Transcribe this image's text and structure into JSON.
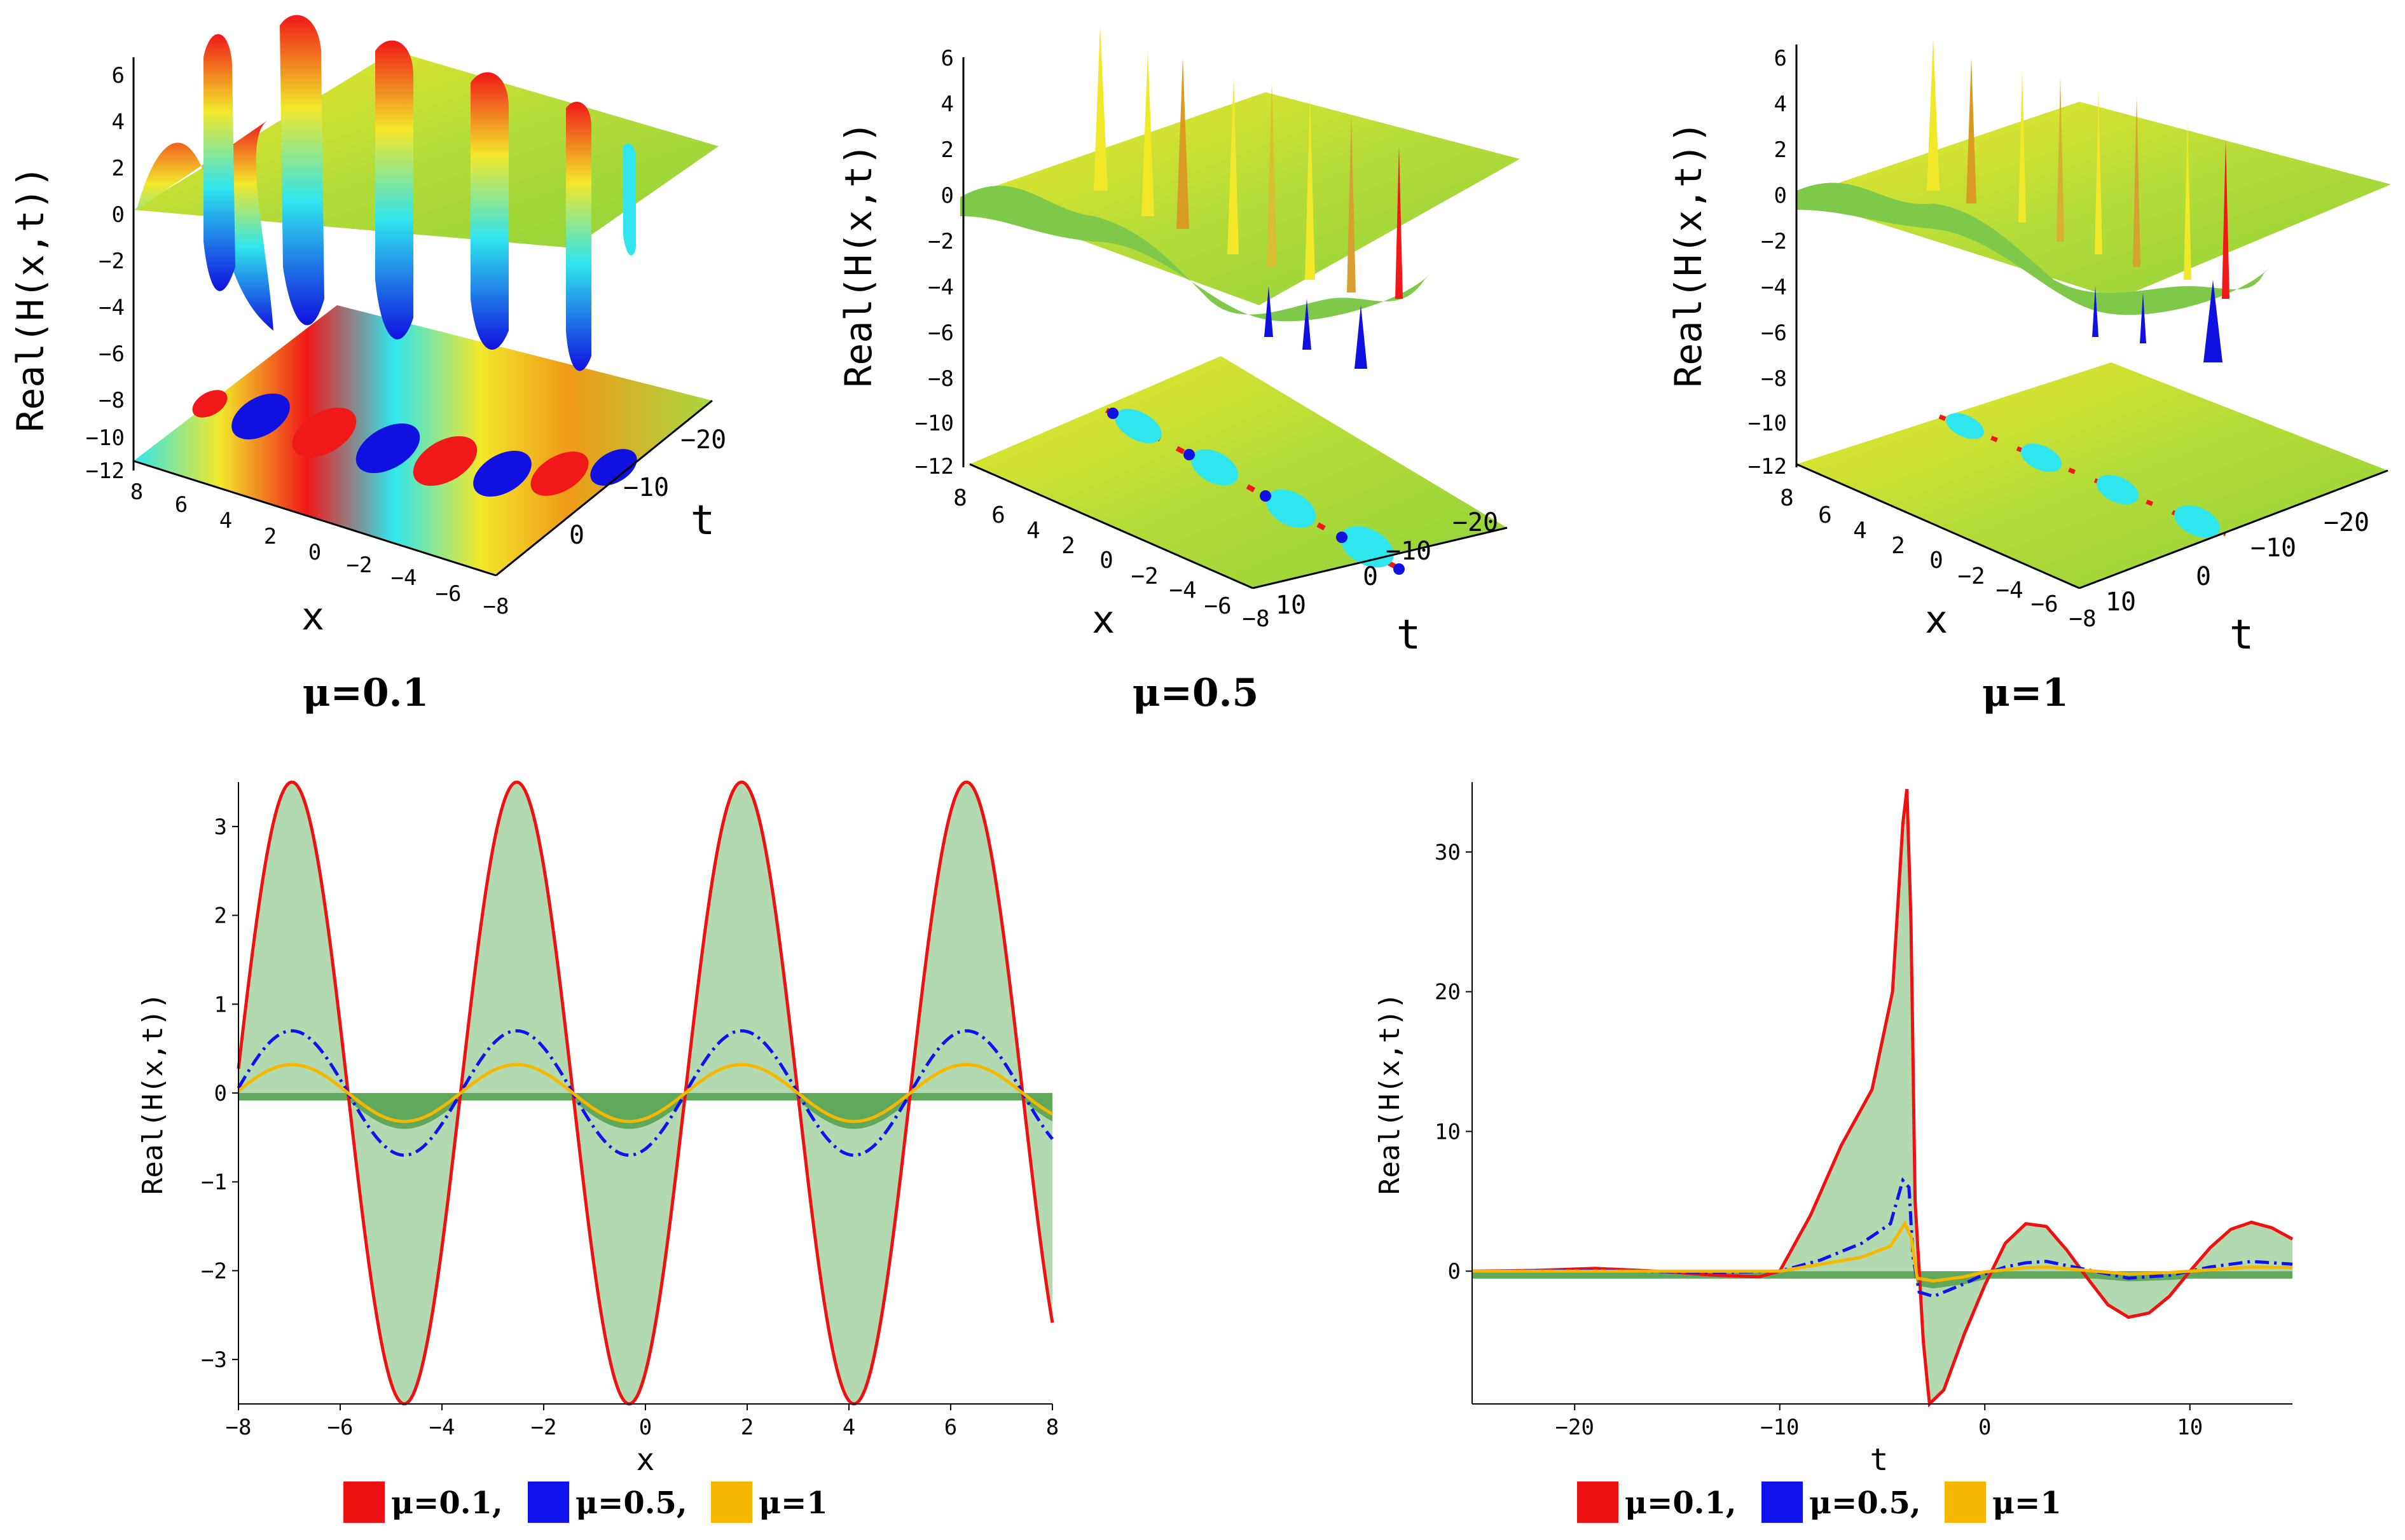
{
  "chart_data": [
    {
      "type": "surface3d",
      "panel": "top-left",
      "caption": "μ=0.1",
      "zlabel": "Real(H(x,t))",
      "xlabel": "x",
      "ylabel": "t",
      "z_ticks": [
        "6",
        "4",
        "2",
        "0",
        "−2",
        "−4",
        "−6",
        "−8",
        "−10",
        "−12"
      ],
      "x_ticks": [
        "8",
        "6",
        "4",
        "2",
        "0",
        "−2",
        "−4",
        "−6",
        "−8"
      ],
      "t_ticks": [
        "−20",
        "−10",
        "0"
      ]
    },
    {
      "type": "surface3d",
      "panel": "top-middle",
      "caption": "μ=0.5",
      "zlabel": "Real(H(x,t))",
      "xlabel": "x",
      "ylabel": "t",
      "z_ticks": [
        "6",
        "4",
        "2",
        "0",
        "−2",
        "−4",
        "−6",
        "−8",
        "−10",
        "−12"
      ],
      "x_ticks": [
        "8",
        "6",
        "4",
        "2",
        "0",
        "−2",
        "−4",
        "−6",
        "−8"
      ],
      "t_ticks": [
        "−20",
        "−10",
        "0",
        "10"
      ]
    },
    {
      "type": "surface3d",
      "panel": "top-right",
      "caption": "μ=1",
      "zlabel": "Real(H(x,t))",
      "xlabel": "x",
      "ylabel": "t",
      "z_ticks": [
        "6",
        "4",
        "2",
        "0",
        "−2",
        "−4",
        "−6",
        "−8",
        "−10",
        "−12"
      ],
      "x_ticks": [
        "8",
        "6",
        "4",
        "2",
        "0",
        "−2",
        "−4",
        "−6",
        "−8"
      ],
      "t_ticks": [
        "−20",
        "−10",
        "0",
        "10"
      ]
    },
    {
      "type": "line",
      "panel": "bottom-left",
      "xlabel": "x",
      "ylabel": "Real(H(x,t))",
      "xlim": [
        -8,
        8
      ],
      "ylim": [
        -3.5,
        3.5
      ],
      "x_ticks": [
        -8,
        -6,
        -4,
        -2,
        0,
        2,
        4,
        6,
        8
      ],
      "y_ticks": [
        -3,
        -2,
        -1,
        0,
        1,
        2,
        3
      ],
      "series": [
        {
          "name": "μ=0.1",
          "amplitude": 3.5,
          "period": 4.42,
          "phase_peak_x": -6.95,
          "end_x": 8,
          "end_y": -2.4
        },
        {
          "name": "μ=0.5",
          "amplitude": 0.7,
          "period": 4.42,
          "phase_peak_x": -6.95
        },
        {
          "name": "μ=1",
          "amplitude": 0.32,
          "period": 4.42,
          "phase_peak_x": -6.95
        }
      ],
      "legend": [
        "μ=0.1,",
        "μ=0.5,",
        "μ=1"
      ]
    },
    {
      "type": "line",
      "panel": "bottom-right",
      "xlabel": "t",
      "ylabel": "Real(H(x,t))",
      "xlim": [
        -25,
        15
      ],
      "ylim": [
        -9.5,
        35
      ],
      "x_ticks": [
        -20,
        -10,
        0,
        10
      ],
      "y_ticks": [
        0,
        10,
        20,
        30
      ],
      "series": [
        {
          "name": "μ=0.1",
          "points": [
            [
              -25,
              0
            ],
            [
              -22,
              0.05
            ],
            [
              -19,
              0.2
            ],
            [
              -16,
              0
            ],
            [
              -13,
              -0.3
            ],
            [
              -11,
              -0.4
            ],
            [
              -10,
              0
            ],
            [
              -8.5,
              4
            ],
            [
              -7,
              9
            ],
            [
              -5.5,
              13
            ],
            [
              -4.5,
              20
            ],
            [
              -4,
              32
            ],
            [
              -3.8,
              34.5
            ],
            [
              -3.6,
              25
            ],
            [
              -3.4,
              5
            ],
            [
              -3.0,
              -5
            ],
            [
              -2.7,
              -9.5
            ],
            [
              -2,
              -8.5
            ],
            [
              -1,
              -4.5
            ],
            [
              0,
              -1
            ],
            [
              1,
              2
            ],
            [
              2,
              3.4
            ],
            [
              3,
              3.2
            ],
            [
              4,
              1.5
            ],
            [
              5,
              -0.5
            ],
            [
              6,
              -2.4
            ],
            [
              7,
              -3.3
            ],
            [
              8,
              -3
            ],
            [
              9,
              -1.8
            ],
            [
              10,
              0
            ],
            [
              11,
              1.7
            ],
            [
              12,
              3
            ],
            [
              13,
              3.5
            ],
            [
              14,
              3.1
            ],
            [
              15,
              2.3
            ]
          ]
        },
        {
          "name": "μ=0.5",
          "points": [
            [
              -25,
              0
            ],
            [
              -19,
              0.05
            ],
            [
              -13,
              -0.1
            ],
            [
              -10,
              0
            ],
            [
              -8,
              0.8
            ],
            [
              -6,
              2
            ],
            [
              -4.6,
              3.4
            ],
            [
              -4.0,
              6.5
            ],
            [
              -3.7,
              6.0
            ],
            [
              -3.5,
              1
            ],
            [
              -3.2,
              -1.5
            ],
            [
              -2.5,
              -1.8
            ],
            [
              -1,
              -0.9
            ],
            [
              0,
              -0.2
            ],
            [
              1,
              0.3
            ],
            [
              2,
              0.6
            ],
            [
              3,
              0.7
            ],
            [
              5,
              0.1
            ],
            [
              7,
              -0.5
            ],
            [
              9,
              -0.3
            ],
            [
              11,
              0.3
            ],
            [
              13,
              0.7
            ],
            [
              15,
              0.5
            ]
          ]
        },
        {
          "name": "μ=1",
          "points": [
            [
              -25,
              0
            ],
            [
              -15,
              0
            ],
            [
              -10,
              0
            ],
            [
              -8,
              0.5
            ],
            [
              -6,
              1
            ],
            [
              -4.6,
              1.8
            ],
            [
              -3.9,
              3.4
            ],
            [
              -3.6,
              2.5
            ],
            [
              -3.3,
              -0.5
            ],
            [
              -2.5,
              -0.7
            ],
            [
              -1,
              -0.4
            ],
            [
              0,
              -0.05
            ],
            [
              2,
              0.25
            ],
            [
              3,
              0.3
            ],
            [
              5,
              0.05
            ],
            [
              7,
              -0.2
            ],
            [
              9,
              -0.1
            ],
            [
              11,
              0.1
            ],
            [
              13,
              0.3
            ],
            [
              15,
              0.25
            ]
          ]
        }
      ],
      "legend": [
        "μ=0.1,",
        "μ=0.5,",
        "μ=1"
      ]
    }
  ],
  "colors": {
    "mu01": "#ee1111",
    "mu05": "#1111ee",
    "mu1": "#f5b700",
    "fill_light": "#b3d9b0",
    "fill_dark": "#5fa85c",
    "surface_green": "#a8d840",
    "surface_yellow": "#f2e82a",
    "surface_red": "#f01818",
    "surface_blue": "#1010e0",
    "surface_cyan": "#30e6ee"
  }
}
